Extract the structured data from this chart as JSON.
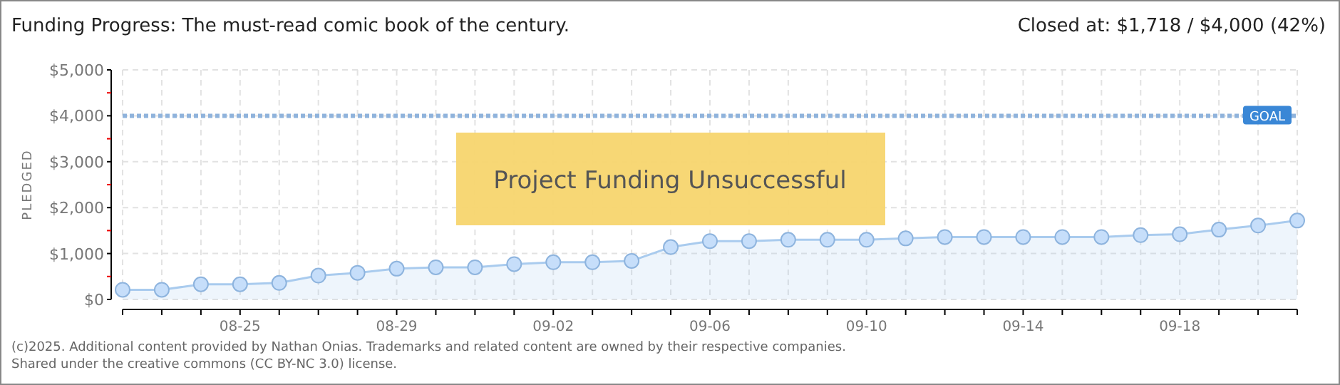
{
  "chart_data": {
    "type": "area",
    "title": "Funding Progress: The must-read comic book of the century.",
    "subtitle": "Closed at:  $1,718 / $4,000 (42%)",
    "ylabel": "PLEDGED",
    "x": [
      "--08-22",
      "--08-23",
      "--08-24",
      "--08-25",
      "--08-26",
      "--08-27",
      "--08-28",
      "--08-29",
      "--08-30",
      "--08-31",
      "--09-01",
      "--09-02",
      "--09-03",
      "--09-04",
      "--09-05",
      "--09-06",
      "--09-07",
      "--09-08",
      "--09-09",
      "--09-10",
      "--09-11",
      "--09-12",
      "--09-13",
      "--09-14",
      "--09-15",
      "--09-16",
      "--09-17",
      "--09-18",
      "--09-19",
      "--09-20",
      "--09-21"
    ],
    "series": [
      {
        "color": "#a9cbee",
        "values": [
          210,
          210,
          330,
          330,
          360,
          520,
          580,
          670,
          700,
          700,
          770,
          810,
          810,
          840,
          1140,
          1270,
          1270,
          1300,
          1300,
          1300,
          1330,
          1360,
          1360,
          1360,
          1360,
          1360,
          1400,
          1420,
          1520,
          1610,
          1718
        ]
      }
    ],
    "xlim": [
      "--08-22",
      "--09-21"
    ],
    "xticks": [
      {
        "value": "--08-22",
        "label": null
      },
      {
        "value": "--08-23",
        "label": null
      },
      {
        "value": "--08-24",
        "label": null
      },
      {
        "value": "--08-25",
        "label": "08-25"
      },
      {
        "value": "--08-26",
        "label": null
      },
      {
        "value": "--08-27",
        "label": null
      },
      {
        "value": "--08-28",
        "label": null
      },
      {
        "value": "--08-29",
        "label": "08-29"
      },
      {
        "value": "--08-30",
        "label": null
      },
      {
        "value": "--08-31",
        "label": null
      },
      {
        "value": "--09-01",
        "label": null
      },
      {
        "value": "--09-02",
        "label": "09-02"
      },
      {
        "value": "--09-03",
        "label": null
      },
      {
        "value": "--09-04",
        "label": null
      },
      {
        "value": "--09-05",
        "label": null
      },
      {
        "value": "--09-06",
        "label": "09-06"
      },
      {
        "value": "--09-07",
        "label": null
      },
      {
        "value": "--09-08",
        "label": null
      },
      {
        "value": "--09-09",
        "label": null
      },
      {
        "value": "--09-10",
        "label": "09-10"
      },
      {
        "value": "--09-11",
        "label": null
      },
      {
        "value": "--09-12",
        "label": null
      },
      {
        "value": "--09-13",
        "label": null
      },
      {
        "value": "--09-14",
        "label": "09-14"
      },
      {
        "value": "--09-15",
        "label": null
      },
      {
        "value": "--09-16",
        "label": null
      },
      {
        "value": "--09-17",
        "label": null
      },
      {
        "value": "--09-18",
        "label": "09-18"
      },
      {
        "value": "--09-19",
        "label": null
      },
      {
        "value": "--09-20",
        "label": null
      },
      {
        "value": "--09-21",
        "label": null
      }
    ],
    "ylim": [
      0,
      5000
    ],
    "yticks": [
      {
        "value": 0,
        "label": "$0"
      },
      {
        "value": 500,
        "label": null
      },
      {
        "value": 1000,
        "label": "$1,000"
      },
      {
        "value": 1500,
        "label": null
      },
      {
        "value": 2000,
        "label": "$2,000"
      },
      {
        "value": 2500,
        "label": null
      },
      {
        "value": 3000,
        "label": "$3,000"
      },
      {
        "value": 3500,
        "label": null
      },
      {
        "value": 4000,
        "label": "$4,000"
      },
      {
        "value": 4500,
        "label": null
      },
      {
        "value": 5000,
        "label": "$5,000"
      }
    ],
    "grid": true,
    "marker": "circle",
    "ref_lines": [
      {
        "axis": "y",
        "value": 4000,
        "label": "GOAL",
        "color": "#8fb3dc",
        "line_style": "dotted"
      }
    ],
    "annotations": [
      "Project Funding Unsuccessful",
      "(c)2025. Additional content provided by Nathan Onias. Trademarks and related content are owned by their respective companies.",
      "Shared under the creative commons (CC BY-NC 3.0) license."
    ]
  }
}
